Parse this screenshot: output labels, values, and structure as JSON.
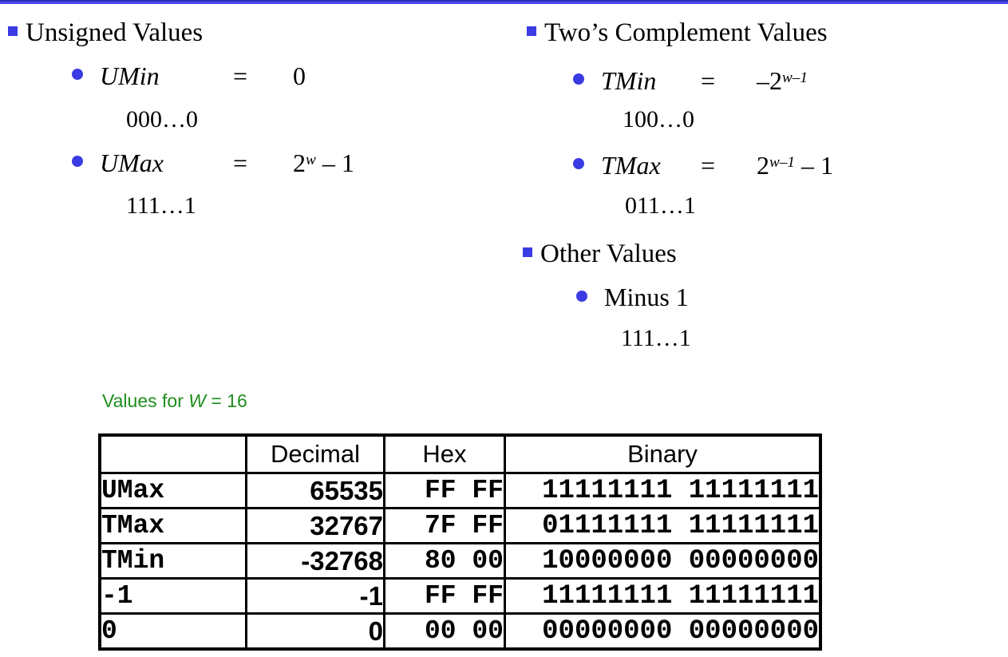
{
  "colors": {
    "bullet_blue": "#3b3be4",
    "topbar_blue": "#4343e8",
    "caption_green": "#1e8e1e"
  },
  "left_column": {
    "heading": "Unsigned Values",
    "items": [
      {
        "name": "UMin",
        "eq": "=",
        "value_prefix": "",
        "value_base": "0",
        "value_sup": "",
        "value_tail": "",
        "pattern": "000…0"
      },
      {
        "name": "UMax",
        "eq": "=",
        "value_prefix": "",
        "value_base": "2",
        "value_sup": "w",
        "value_tail": " – 1",
        "pattern": "111…1"
      }
    ]
  },
  "right_column": {
    "heading": "Two’s Complement Values",
    "items": [
      {
        "name": "TMin",
        "eq": "=",
        "value_prefix": "–",
        "value_base": "2",
        "value_sup": "w–1",
        "value_tail": "",
        "pattern": "100…0"
      },
      {
        "name": "TMax",
        "eq": "=",
        "value_prefix": "",
        "value_base": "2",
        "value_sup": "w–1",
        "value_tail": " – 1",
        "pattern": "011…1"
      }
    ],
    "other_heading": "Other Values",
    "other_item": {
      "label": "Minus 1",
      "pattern": "111…1"
    }
  },
  "table": {
    "caption": {
      "prefix": "Values for ",
      "var": "W",
      "suffix": " = 16"
    },
    "headers": [
      "",
      "Decimal",
      "Hex",
      "Binary"
    ],
    "rows": [
      {
        "label": "UMax",
        "decimal": "65535",
        "hex": "FF FF",
        "binary": "11111111 11111111"
      },
      {
        "label": "TMax",
        "decimal": "32767",
        "hex": "7F FF",
        "binary": "01111111 11111111"
      },
      {
        "label": "TMin",
        "decimal": "-32768",
        "hex": "80 00",
        "binary": "10000000 00000000"
      },
      {
        "label": "-1",
        "decimal": "-1",
        "hex": "FF FF",
        "binary": "11111111 11111111"
      },
      {
        "label": "0",
        "decimal": "0",
        "hex": "00 00",
        "binary": "00000000 00000000"
      }
    ]
  }
}
